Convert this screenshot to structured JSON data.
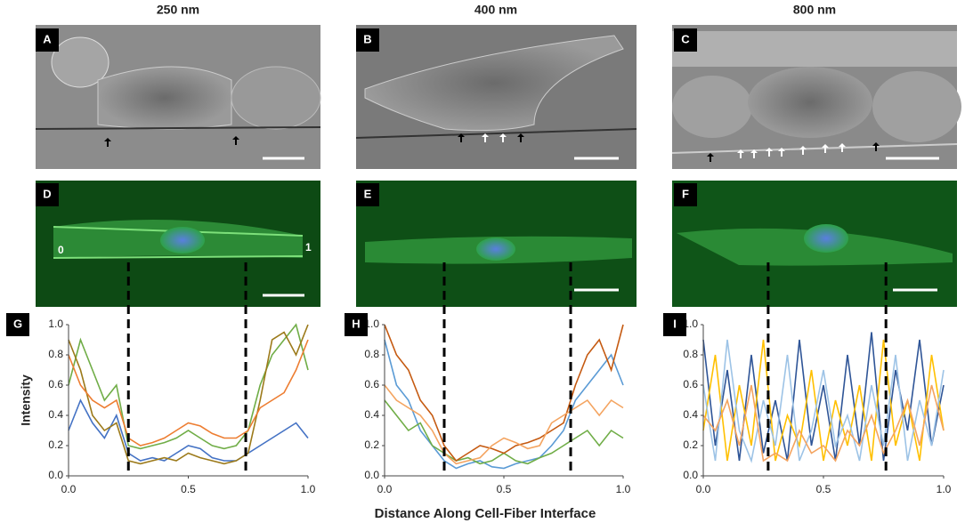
{
  "column_titles": [
    "250 nm",
    "400 nm",
    "800 nm"
  ],
  "panel_labels": [
    "A",
    "B",
    "C",
    "D",
    "E",
    "F"
  ],
  "fluor_marks": [
    "0",
    "1"
  ],
  "shared_x_label": "Distance Along Cell-Fiber Interface",
  "chart_data": [
    {
      "type": "line",
      "panel_label": "G",
      "y_label": "Intensity",
      "x": [
        0,
        0.05,
        0.1,
        0.15,
        0.2,
        0.25,
        0.3,
        0.35,
        0.4,
        0.45,
        0.5,
        0.55,
        0.6,
        0.65,
        0.7,
        0.75,
        0.8,
        0.85,
        0.9,
        0.95,
        1.0
      ],
      "xlim": [
        0,
        1
      ],
      "ylim": [
        0,
        1
      ],
      "xticks": [
        {
          "value": 0,
          "label": "0.0"
        },
        {
          "value": 0.5,
          "label": "0.5"
        },
        {
          "value": 1,
          "label": "1.0"
        }
      ],
      "yticks": [
        {
          "value": 0,
          "label": "0.0"
        },
        {
          "value": 0.2,
          "label": "0.2"
        },
        {
          "value": 0.4,
          "label": "0.4"
        },
        {
          "value": 0.6,
          "label": "0.6"
        },
        {
          "value": 0.8,
          "label": "0.8"
        },
        {
          "value": 1,
          "label": "1.0"
        }
      ],
      "boundaries": [
        0.25,
        0.74
      ],
      "series": [
        {
          "color": "#4472c4",
          "values": [
            0.3,
            0.5,
            0.35,
            0.25,
            0.4,
            0.15,
            0.1,
            0.12,
            0.1,
            0.15,
            0.2,
            0.18,
            0.12,
            0.1,
            0.1,
            0.15,
            0.2,
            0.25,
            0.3,
            0.35,
            0.25
          ]
        },
        {
          "color": "#70ad47",
          "values": [
            0.6,
            0.9,
            0.7,
            0.5,
            0.6,
            0.2,
            0.18,
            0.2,
            0.22,
            0.25,
            0.3,
            0.25,
            0.2,
            0.18,
            0.2,
            0.3,
            0.6,
            0.8,
            0.9,
            1.0,
            0.7
          ]
        },
        {
          "color": "#9c7a1a",
          "values": [
            0.9,
            0.7,
            0.4,
            0.3,
            0.35,
            0.1,
            0.08,
            0.1,
            0.12,
            0.1,
            0.15,
            0.12,
            0.1,
            0.08,
            0.1,
            0.15,
            0.5,
            0.9,
            0.95,
            0.8,
            1.0
          ]
        },
        {
          "color": "#ed7d31",
          "values": [
            0.8,
            0.6,
            0.5,
            0.45,
            0.5,
            0.25,
            0.2,
            0.22,
            0.25,
            0.3,
            0.35,
            0.33,
            0.28,
            0.25,
            0.25,
            0.3,
            0.45,
            0.5,
            0.55,
            0.7,
            0.9
          ]
        }
      ]
    },
    {
      "type": "line",
      "panel_label": "H",
      "x": [
        0,
        0.05,
        0.1,
        0.15,
        0.2,
        0.25,
        0.3,
        0.35,
        0.4,
        0.45,
        0.5,
        0.55,
        0.6,
        0.65,
        0.7,
        0.75,
        0.8,
        0.85,
        0.9,
        0.95,
        1.0
      ],
      "xlim": [
        0,
        1
      ],
      "ylim": [
        0,
        1
      ],
      "xticks": [
        {
          "value": 0,
          "label": "0.0"
        },
        {
          "value": 0.5,
          "label": "0.5"
        },
        {
          "value": 1,
          "label": "1.0"
        }
      ],
      "yticks": [
        {
          "value": 0,
          "label": "0.0"
        },
        {
          "value": 0.2,
          "label": "0.2"
        },
        {
          "value": 0.4,
          "label": "0.4"
        },
        {
          "value": 0.6,
          "label": "0.6"
        },
        {
          "value": 0.8,
          "label": "0.8"
        },
        {
          "value": 1,
          "label": "1.0"
        }
      ],
      "boundaries": [
        0.25,
        0.78
      ],
      "series": [
        {
          "color": "#5b9bd5",
          "values": [
            0.9,
            0.6,
            0.5,
            0.3,
            0.2,
            0.1,
            0.05,
            0.08,
            0.1,
            0.06,
            0.05,
            0.08,
            0.1,
            0.12,
            0.2,
            0.3,
            0.5,
            0.6,
            0.7,
            0.8,
            0.6
          ]
        },
        {
          "color": "#70ad47",
          "values": [
            0.5,
            0.4,
            0.3,
            0.35,
            0.2,
            0.15,
            0.1,
            0.12,
            0.08,
            0.1,
            0.15,
            0.1,
            0.08,
            0.12,
            0.15,
            0.2,
            0.25,
            0.3,
            0.2,
            0.3,
            0.25
          ]
        },
        {
          "color": "#c55a11",
          "values": [
            1.0,
            0.8,
            0.7,
            0.5,
            0.4,
            0.2,
            0.1,
            0.15,
            0.2,
            0.18,
            0.15,
            0.2,
            0.22,
            0.25,
            0.3,
            0.35,
            0.6,
            0.8,
            0.9,
            0.7,
            1.0
          ]
        },
        {
          "color": "#f4a460",
          "values": [
            0.6,
            0.5,
            0.45,
            0.4,
            0.3,
            0.15,
            0.08,
            0.1,
            0.12,
            0.2,
            0.25,
            0.22,
            0.18,
            0.2,
            0.35,
            0.4,
            0.45,
            0.5,
            0.4,
            0.5,
            0.45
          ]
        }
      ]
    },
    {
      "type": "line",
      "panel_label": "I",
      "x": [
        0,
        0.05,
        0.1,
        0.15,
        0.2,
        0.25,
        0.3,
        0.35,
        0.4,
        0.45,
        0.5,
        0.55,
        0.6,
        0.65,
        0.7,
        0.75,
        0.8,
        0.85,
        0.9,
        0.95,
        1.0
      ],
      "xlim": [
        0,
        1
      ],
      "ylim": [
        0,
        1
      ],
      "xticks": [
        {
          "value": 0,
          "label": "0.0"
        },
        {
          "value": 0.5,
          "label": "0.5"
        },
        {
          "value": 1,
          "label": "1.0"
        }
      ],
      "yticks": [
        {
          "value": 0,
          "label": "0.0"
        },
        {
          "value": 0.2,
          "label": "0.2"
        },
        {
          "value": 0.4,
          "label": "0.4"
        },
        {
          "value": 0.6,
          "label": "0.6"
        },
        {
          "value": 0.8,
          "label": "0.8"
        },
        {
          "value": 1,
          "label": "1.0"
        }
      ],
      "boundaries": [
        0.27,
        0.76
      ],
      "series": [
        {
          "color": "#2f5597",
          "values": [
            0.9,
            0.2,
            0.7,
            0.1,
            0.8,
            0.15,
            0.5,
            0.1,
            0.9,
            0.2,
            0.6,
            0.1,
            0.8,
            0.2,
            0.95,
            0.1,
            0.7,
            0.3,
            0.9,
            0.2,
            0.6
          ]
        },
        {
          "color": "#ffc000",
          "values": [
            0.3,
            0.8,
            0.1,
            0.6,
            0.2,
            0.9,
            0.1,
            0.4,
            0.2,
            0.7,
            0.1,
            0.5,
            0.2,
            0.6,
            0.1,
            0.9,
            0.2,
            0.5,
            0.1,
            0.8,
            0.3
          ]
        },
        {
          "color": "#9dc3e6",
          "values": [
            0.6,
            0.1,
            0.9,
            0.3,
            0.1,
            0.5,
            0.2,
            0.8,
            0.1,
            0.3,
            0.7,
            0.2,
            0.4,
            0.1,
            0.6,
            0.2,
            0.8,
            0.1,
            0.5,
            0.2,
            0.7
          ]
        },
        {
          "color": "#f4a460",
          "values": [
            0.4,
            0.3,
            0.5,
            0.2,
            0.6,
            0.1,
            0.15,
            0.1,
            0.3,
            0.15,
            0.2,
            0.1,
            0.3,
            0.2,
            0.4,
            0.15,
            0.3,
            0.5,
            0.2,
            0.6,
            0.3
          ]
        }
      ]
    }
  ]
}
